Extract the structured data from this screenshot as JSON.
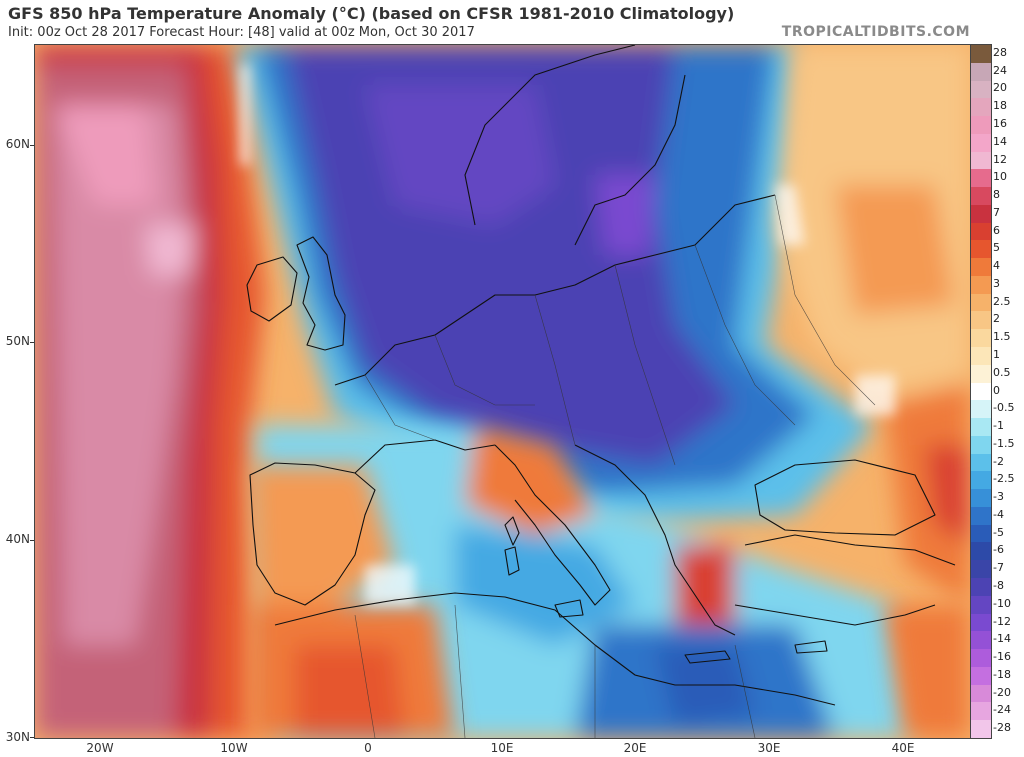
{
  "header": {
    "title": "GFS 850 hPa Temperature Anomaly (°C) (based on CFSR 1981-2010 Climatology)",
    "subtitle": "Init: 00z Oct 28 2017   Forecast Hour: [48]   valid at 00z Mon, Oct 30 2017",
    "brand": "TROPICALTIDBITS.COM"
  },
  "map": {
    "lat_labels": [
      "60N",
      "50N",
      "40N",
      "30N"
    ],
    "lon_labels": [
      "20W",
      "10W",
      "0",
      "10E",
      "20E",
      "30E",
      "40E"
    ],
    "lat_range": [
      30,
      65
    ],
    "lon_range": [
      -25,
      45
    ],
    "field": "850 hPa temperature anomaly",
    "units": "°C"
  },
  "colorbar": {
    "labels": [
      "28",
      "24",
      "20",
      "18",
      "16",
      "14",
      "12",
      "10",
      "8",
      "7",
      "6",
      "5",
      "4",
      "3",
      "2.5",
      "2",
      "1.5",
      "1",
      "0.5",
      "0",
      "-0.5",
      "-1",
      "-1.5",
      "-2",
      "-2.5",
      "-3",
      "-4",
      "-5",
      "-6",
      "-7",
      "-8",
      "-10",
      "-12",
      "-14",
      "-16",
      "-18",
      "-20",
      "-24",
      "-28"
    ],
    "colors": [
      "#7a5a3c",
      "#c7a7b6",
      "#d8b2c2",
      "#e4a6bd",
      "#ee9bbb",
      "#f3a6c9",
      "#f0b8d2",
      "#e66b8d",
      "#d8495f",
      "#c9323f",
      "#d94030",
      "#e6562e",
      "#ef7a3a",
      "#f49a52",
      "#f6b26a",
      "#f8c685",
      "#fad89e",
      "#fce6b8",
      "#fdf2d6",
      "#ffffff",
      "#d6f4f8",
      "#a9e8f3",
      "#7fd6ef",
      "#5cc0ea",
      "#44a9e3",
      "#3790d8",
      "#2f74c9",
      "#2a5cb8",
      "#2d4aa8",
      "#3a45a8",
      "#4c43b3",
      "#6446c2",
      "#7a4ad0",
      "#9451d6",
      "#ad5cdc",
      "#c46fe0",
      "#d88ad9",
      "#e7a6e0",
      "#f2c6ea"
    ]
  }
}
